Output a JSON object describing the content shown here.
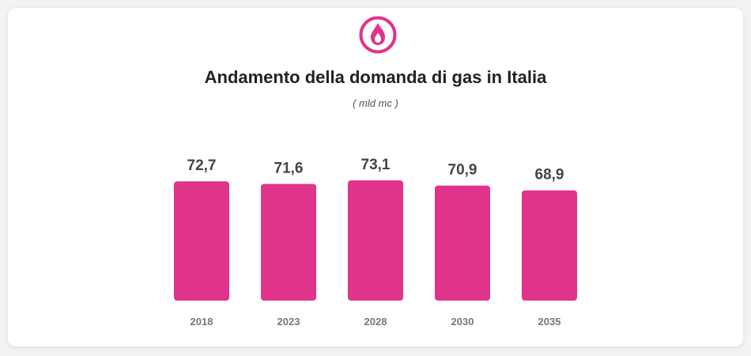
{
  "header": {
    "title": "Andamento della domanda di gas in Italia",
    "subtitle": "( mld mc )",
    "icon": "gas-flame-icon"
  },
  "colors": {
    "accent": "#e0338a",
    "background": "#ffffff"
  },
  "chart_data": {
    "type": "bar",
    "title": "Andamento della domanda di gas in Italia",
    "subtitle": "( mld mc )",
    "categories": [
      "2018",
      "2023",
      "2028",
      "2030",
      "2035"
    ],
    "values": [
      72.7,
      71.6,
      73.1,
      70.9,
      68.9
    ],
    "value_labels": [
      "72,7",
      "71,6",
      "73,1",
      "70,9",
      "68,9"
    ],
    "xlabel": "",
    "ylabel": "",
    "grid": false,
    "legend": "none"
  }
}
